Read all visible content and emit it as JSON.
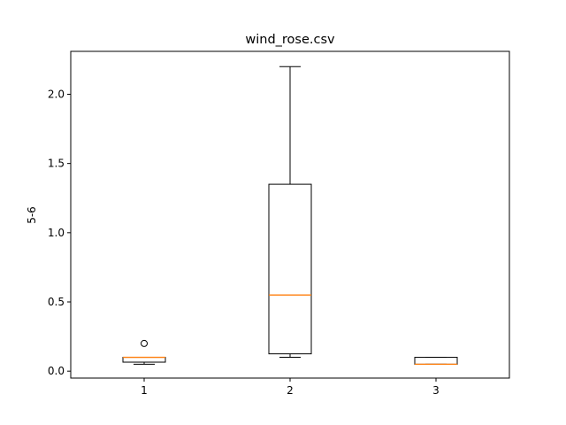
{
  "chart_data": {
    "type": "boxplot",
    "title": "wind_rose.csv",
    "xlabel": "",
    "ylabel": "5-6",
    "categories": [
      "1",
      "2",
      "3"
    ],
    "ylim": [
      -0.05,
      2.31
    ],
    "yticks": [
      0.0,
      0.5,
      1.0,
      1.5,
      2.0
    ],
    "ytick_labels": [
      "0.0",
      "0.5",
      "1.0",
      "1.5",
      "2.0"
    ],
    "grid": false,
    "boxes": [
      {
        "category": "1",
        "whisker_low": 0.05,
        "q1": 0.065,
        "median": 0.1,
        "q3": 0.1,
        "whisker_high": 0.1,
        "outliers": [
          0.2
        ]
      },
      {
        "category": "2",
        "whisker_low": 0.1,
        "q1": 0.125,
        "median": 0.55,
        "q3": 1.35,
        "whisker_high": 2.2,
        "outliers": []
      },
      {
        "category": "3",
        "whisker_low": 0.05,
        "q1": 0.05,
        "median": 0.05,
        "q3": 0.1,
        "whisker_high": 0.1,
        "outliers": []
      }
    ],
    "colors": {
      "box": "#000000",
      "median": "#ff7f0e",
      "outlier": "#000000"
    }
  }
}
